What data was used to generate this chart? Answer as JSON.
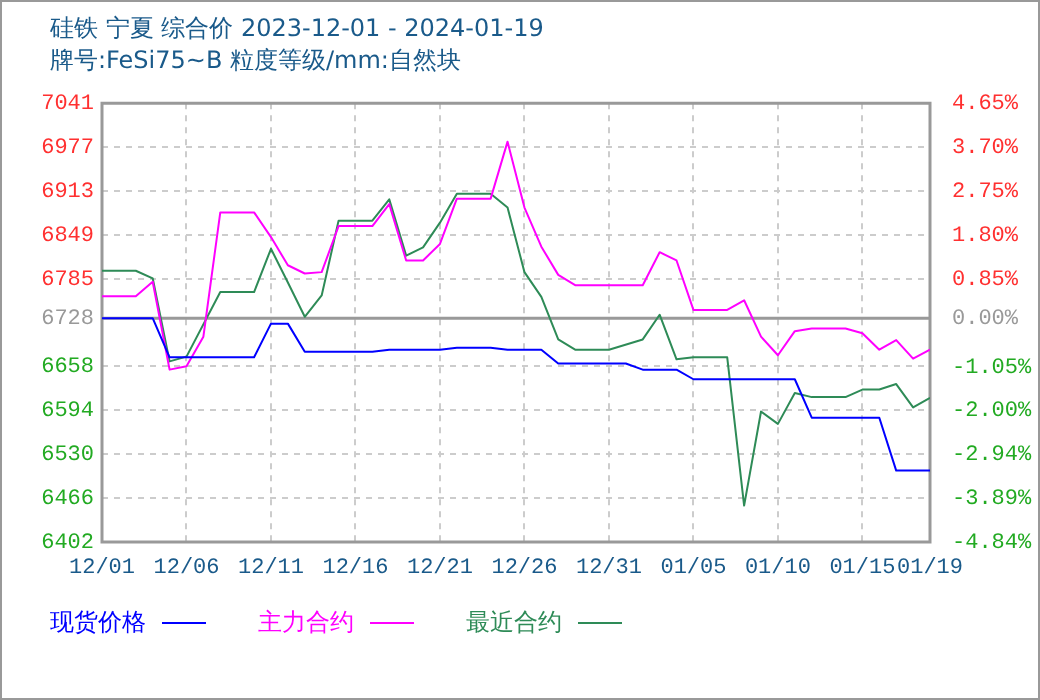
{
  "chart_data": {
    "type": "line",
    "title": "硅铁 宁夏 综合价 2023-12-01 - 2024-01-19",
    "subtitle": "牌号:FeSi75~B 粒度等级/mm:自然块",
    "xlim": [
      "2023-12-01",
      "2024-01-19"
    ],
    "xticks": [
      {
        "value": "2023-12-01",
        "label": "12/01"
      },
      {
        "value": "2023-12-06",
        "label": "12/06"
      },
      {
        "value": "2023-12-11",
        "label": "12/11"
      },
      {
        "value": "2023-12-16",
        "label": "12/16"
      },
      {
        "value": "2023-12-21",
        "label": "12/21"
      },
      {
        "value": "2023-12-26",
        "label": "12/26"
      },
      {
        "value": "2023-12-31",
        "label": "12/31"
      },
      {
        "value": "2024-01-05",
        "label": "01/05"
      },
      {
        "value": "2024-01-10",
        "label": "01/10"
      },
      {
        "value": "2024-01-15",
        "label": "01/15"
      },
      {
        "value": "2024-01-19",
        "label": "01/19"
      }
    ],
    "ylim": [
      6402,
      7041
    ],
    "yticks": [
      6402,
      6466,
      6530,
      6594,
      6658,
      6728,
      6785,
      6849,
      6913,
      6977,
      7041
    ],
    "y2lim": [
      -4.84,
      4.65
    ],
    "y2ticks": [
      {
        "value": -4.84,
        "label": "-4.84%"
      },
      {
        "value": -3.89,
        "label": "-3.89%"
      },
      {
        "value": -2.94,
        "label": "-2.94%"
      },
      {
        "value": -2.0,
        "label": "-2.00%"
      },
      {
        "value": -1.05,
        "label": "-1.05%"
      },
      {
        "value": 0,
        "label": "0.00%"
      },
      {
        "value": 0.85,
        "label": "0.85%"
      },
      {
        "value": 1.8,
        "label": "1.80%"
      },
      {
        "value": 2.75,
        "label": "2.75%"
      },
      {
        "value": 3.7,
        "label": "3.70%"
      },
      {
        "value": 4.65,
        "label": "4.65%"
      }
    ],
    "ref_lines": [
      {
        "axis": "y",
        "value": 6728,
        "color": "#999999"
      }
    ],
    "grid": true,
    "legend": "bottom",
    "line_style": "solid",
    "series": [
      {
        "name": "现货价格",
        "color": "#0000ff",
        "x": [
          "2023-12-01",
          "2023-12-04",
          "2023-12-05",
          "2023-12-10",
          "2023-12-11",
          "2023-12-12",
          "2023-12-13",
          "2023-12-17",
          "2023-12-18",
          "2023-12-21",
          "2023-12-22",
          "2023-12-24",
          "2023-12-25",
          "2023-12-27",
          "2023-12-28",
          "2024-01-01",
          "2024-01-02",
          "2024-01-04",
          "2024-01-05",
          "2024-01-11",
          "2024-01-12",
          "2024-01-16",
          "2024-01-17",
          "2024-01-19"
        ],
        "values": [
          6728,
          6728,
          6671,
          6671,
          6720,
          6720,
          6679,
          6679,
          6682,
          6682,
          6685,
          6685,
          6682,
          6682,
          6662,
          6662,
          6653,
          6653,
          6639,
          6639,
          6583,
          6583,
          6506,
          6506
        ]
      },
      {
        "name": "主力合约",
        "color": "#ff00ff",
        "x": [
          "2023-12-01",
          "2023-12-03",
          "2023-12-04",
          "2023-12-05",
          "2023-12-06",
          "2023-12-07",
          "2023-12-08",
          "2023-12-10",
          "2023-12-11",
          "2023-12-12",
          "2023-12-13",
          "2023-12-14",
          "2023-12-15",
          "2023-12-17",
          "2023-12-18",
          "2023-12-19",
          "2023-12-20",
          "2023-12-21",
          "2023-12-22",
          "2023-12-24",
          "2023-12-25",
          "2023-12-26",
          "2023-12-27",
          "2023-12-28",
          "2023-12-29",
          "2024-01-02",
          "2024-01-03",
          "2024-01-04",
          "2024-01-05",
          "2024-01-07",
          "2024-01-08",
          "2024-01-09",
          "2024-01-10",
          "2024-01-11",
          "2024-01-12",
          "2024-01-14",
          "2024-01-15",
          "2024-01-16",
          "2024-01-17",
          "2024-01-18",
          "2024-01-19"
        ],
        "values": [
          6760,
          6760,
          6781,
          6653,
          6658,
          6701,
          6882,
          6882,
          6846,
          6805,
          6793,
          6795,
          6862,
          6862,
          6894,
          6812,
          6812,
          6836,
          6902,
          6902,
          6985,
          6889,
          6832,
          6791,
          6776,
          6776,
          6824,
          6812,
          6740,
          6740,
          6754,
          6701,
          6674,
          6709,
          6713,
          6713,
          6706,
          6682,
          6696,
          6669,
          6682
        ]
      },
      {
        "name": "最近合约",
        "color": "#2e8b57",
        "x": [
          "2023-12-01",
          "2023-12-03",
          "2023-12-04",
          "2023-12-05",
          "2023-12-06",
          "2023-12-08",
          "2023-12-10",
          "2023-12-11",
          "2023-12-12",
          "2023-12-13",
          "2023-12-14",
          "2023-12-15",
          "2023-12-17",
          "2023-12-18",
          "2023-12-19",
          "2023-12-20",
          "2023-12-21",
          "2023-12-22",
          "2023-12-24",
          "2023-12-25",
          "2023-12-26",
          "2023-12-27",
          "2023-12-28",
          "2023-12-29",
          "2023-12-31",
          "2024-01-02",
          "2024-01-03",
          "2024-01-04",
          "2024-01-05",
          "2024-01-07",
          "2024-01-08",
          "2024-01-09",
          "2024-01-10",
          "2024-01-11",
          "2024-01-12",
          "2024-01-14",
          "2024-01-15",
          "2024-01-16",
          "2024-01-17",
          "2024-01-18",
          "2024-01-19"
        ],
        "values": [
          6797,
          6797,
          6786,
          6665,
          6672,
          6766,
          6766,
          6829,
          6780,
          6730,
          6761,
          6870,
          6870,
          6901,
          6819,
          6831,
          6867,
          6909,
          6909,
          6889,
          6795,
          6759,
          6697,
          6682,
          6682,
          6697,
          6733,
          6668,
          6671,
          6671,
          6455,
          6592,
          6574,
          6619,
          6613,
          6613,
          6624,
          6624,
          6632,
          6598,
          6612
        ]
      }
    ]
  }
}
